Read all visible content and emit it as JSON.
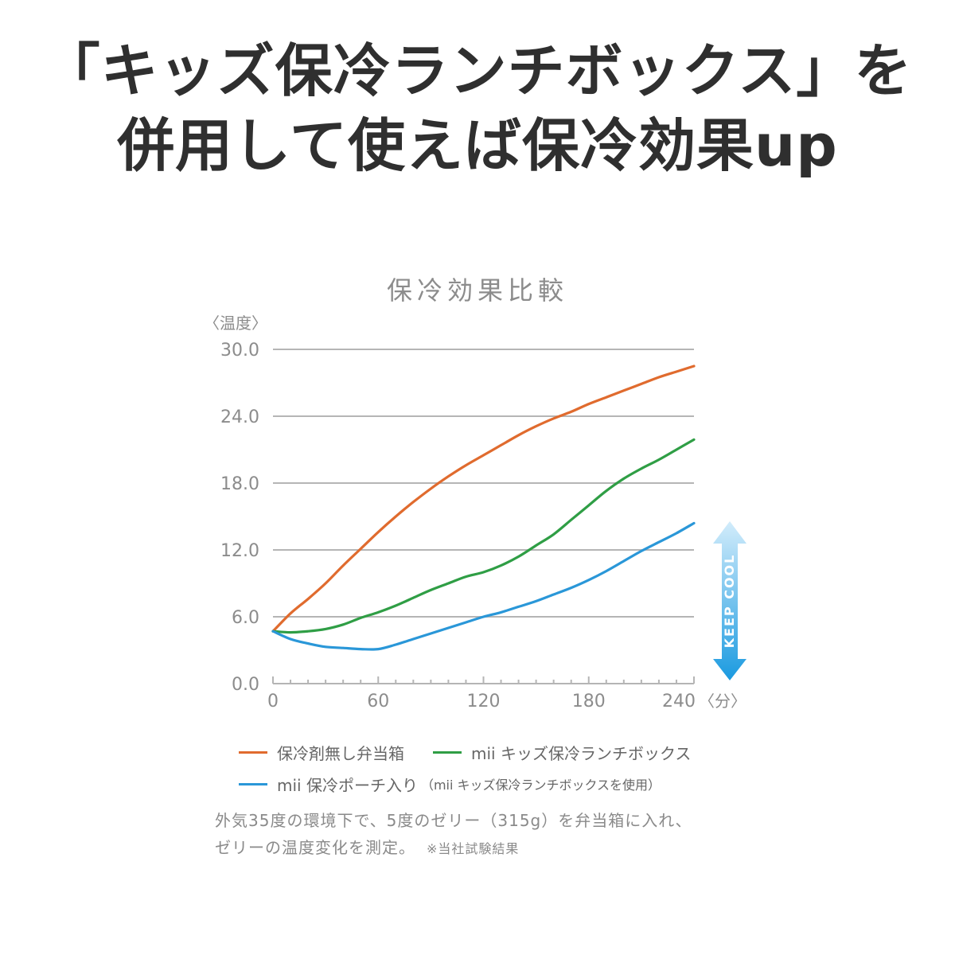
{
  "headline": {
    "line1": "「キッズ保冷ランチボックス」を",
    "line2": "併用して使えば保冷効果up"
  },
  "chart_data": {
    "type": "line",
    "title": "保冷効果比較",
    "ylabel": "〈温度〉",
    "xlabel": "〈分〉",
    "xlim": [
      0,
      240
    ],
    "ylim": [
      0,
      30
    ],
    "x_ticks": [
      0,
      60,
      120,
      180,
      240
    ],
    "x_tick_labels": [
      "0",
      "60",
      "120",
      "180",
      "240"
    ],
    "y_ticks": [
      0,
      6,
      12,
      18,
      24,
      30
    ],
    "y_tick_labels": [
      "0.0",
      "6.0",
      "12.0",
      "18.0",
      "24.0",
      "30.0"
    ],
    "grid": true,
    "legend_position": "bottom",
    "keep_cool_label": "KEEP COOL",
    "series": [
      {
        "name": "保冷剤無し弁当箱",
        "color": "#e06b2e",
        "x": [
          0,
          10,
          20,
          30,
          40,
          50,
          60,
          70,
          80,
          90,
          100,
          110,
          120,
          130,
          140,
          150,
          160,
          170,
          180,
          190,
          200,
          210,
          220,
          230,
          240
        ],
        "values": [
          4.7,
          6.3,
          7.6,
          9.0,
          10.6,
          12.1,
          13.6,
          15.0,
          16.3,
          17.5,
          18.6,
          19.6,
          20.5,
          21.4,
          22.3,
          23.1,
          23.8,
          24.4,
          25.1,
          25.7,
          26.3,
          26.9,
          27.5,
          28.0,
          28.5
        ]
      },
      {
        "name": "mii キッズ保冷ランチボックス",
        "color": "#2f9e45",
        "x": [
          0,
          10,
          20,
          30,
          40,
          50,
          60,
          70,
          80,
          90,
          100,
          110,
          120,
          130,
          140,
          150,
          160,
          170,
          180,
          190,
          200,
          210,
          220,
          230,
          240
        ],
        "values": [
          4.7,
          4.6,
          4.7,
          4.9,
          5.3,
          5.9,
          6.4,
          7.0,
          7.7,
          8.4,
          9.0,
          9.6,
          10.0,
          10.6,
          11.4,
          12.4,
          13.4,
          14.7,
          16.0,
          17.3,
          18.4,
          19.3,
          20.1,
          21.0,
          21.9
        ]
      },
      {
        "name": "mii 保冷ポーチ入り",
        "name_note": "（mii キッズ保冷ランチボックスを使用）",
        "color": "#2a97d8",
        "x": [
          0,
          10,
          20,
          30,
          40,
          50,
          60,
          70,
          80,
          90,
          100,
          110,
          120,
          130,
          140,
          150,
          160,
          170,
          180,
          190,
          200,
          210,
          220,
          230,
          240
        ],
        "values": [
          4.7,
          4.0,
          3.6,
          3.3,
          3.2,
          3.1,
          3.1,
          3.5,
          4.0,
          4.5,
          5.0,
          5.5,
          6.0,
          6.4,
          6.9,
          7.4,
          8.0,
          8.6,
          9.3,
          10.1,
          11.0,
          11.9,
          12.7,
          13.5,
          14.4
        ]
      }
    ]
  },
  "note": {
    "text": "外気35度の環境下で、5度のゼリー（315g）を弁当箱に入れ、",
    "text2": "ゼリーの温度変化を測定。",
    "small": "※当社試験結果"
  }
}
